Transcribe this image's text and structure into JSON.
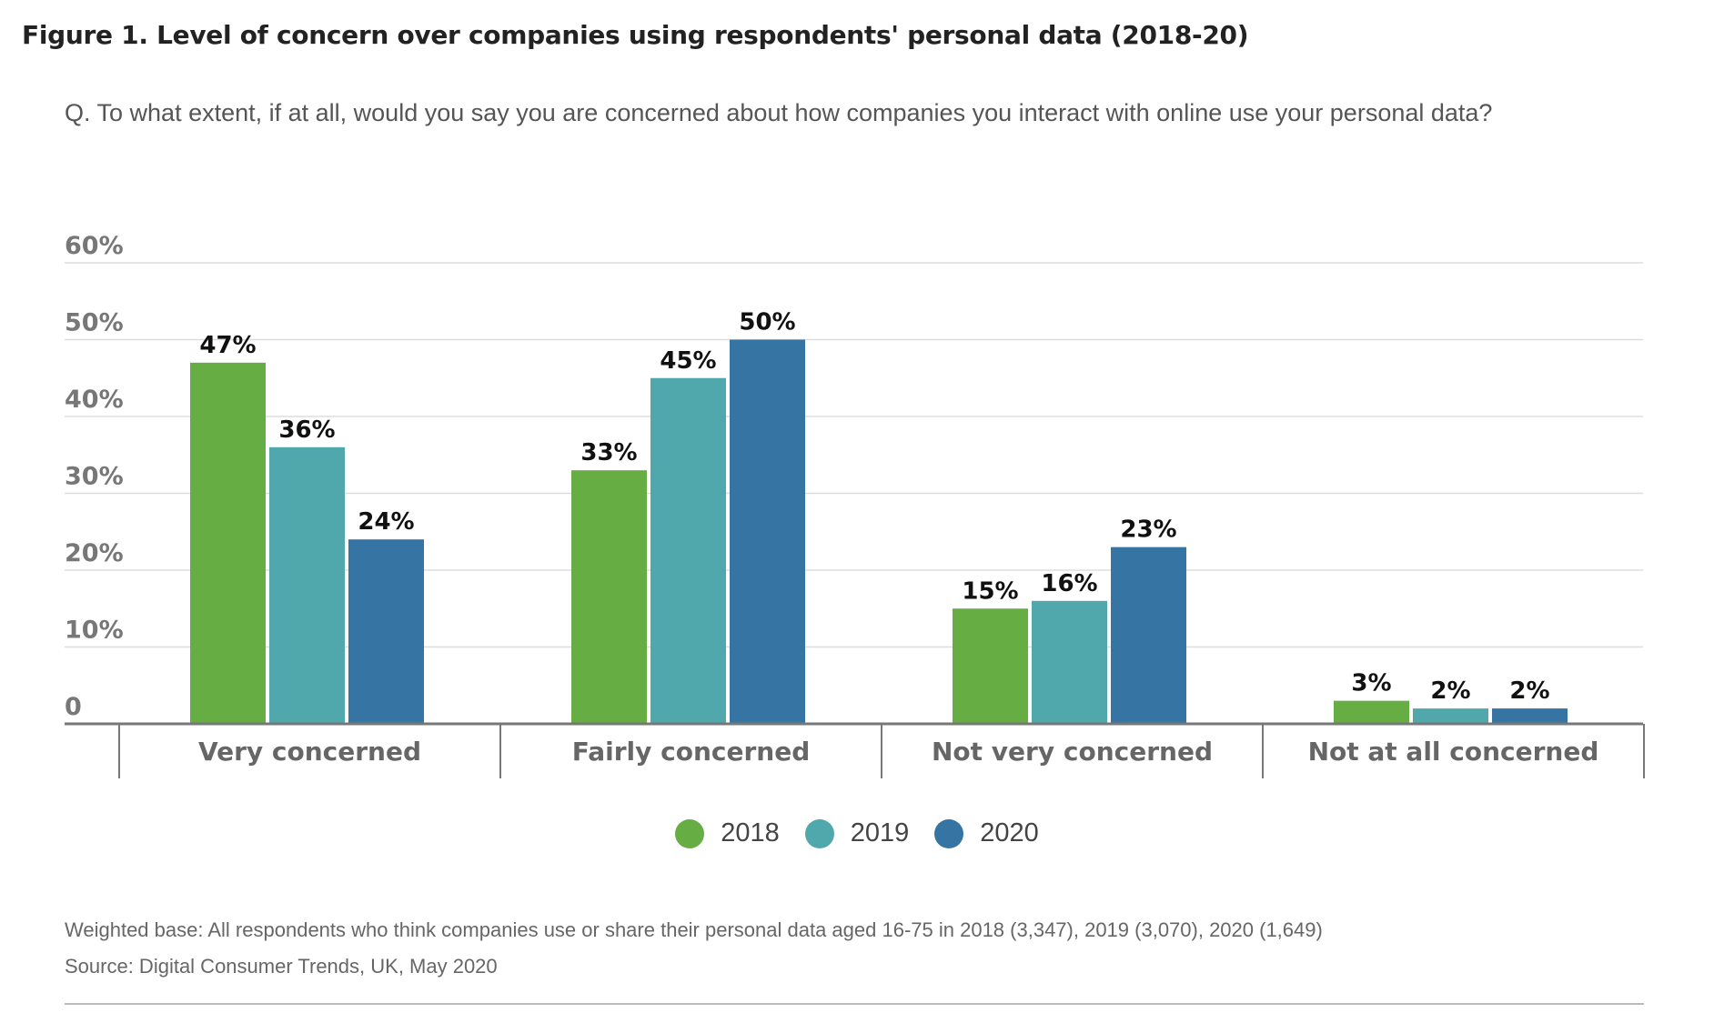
{
  "figure_title": "Figure 1. Level of concern over companies using respondents' personal data (2018-20)",
  "question": "Q. To what extent, if at all, would you say you are concerned about how companies you interact with online use your personal data?",
  "chart_data": {
    "type": "bar",
    "categories": [
      "Very concerned",
      "Fairly concerned",
      "Not very concerned",
      "Not at all concerned"
    ],
    "series": [
      {
        "name": "2018",
        "color": "#66ad43",
        "values": [
          47,
          33,
          15,
          3
        ]
      },
      {
        "name": "2019",
        "color": "#50a8ac",
        "values": [
          36,
          45,
          16,
          2
        ]
      },
      {
        "name": "2020",
        "color": "#3674a3",
        "values": [
          24,
          50,
          23,
          2
        ]
      }
    ],
    "ylim": [
      0,
      60
    ],
    "yticks": [
      0,
      10,
      20,
      30,
      40,
      50,
      60
    ],
    "ytick_labels": [
      "0",
      "10%",
      "20%",
      "30%",
      "40%",
      "50%",
      "60%"
    ],
    "data_labels": [
      [
        "47%",
        "33%",
        "15%",
        "3%"
      ],
      [
        "36%",
        "45%",
        "16%",
        "2%"
      ],
      [
        "24%",
        "50%",
        "23%",
        "2%"
      ]
    ],
    "grid": true,
    "legend_position": "bottom-center"
  },
  "footnotes": {
    "base": "Weighted base: All respondents who think companies use or share their personal data aged 16-75 in 2018 (3,347), 2019 (3,070), 2020 (1,649)",
    "source": "Source: Digital Consumer Trends, UK, May 2020"
  }
}
